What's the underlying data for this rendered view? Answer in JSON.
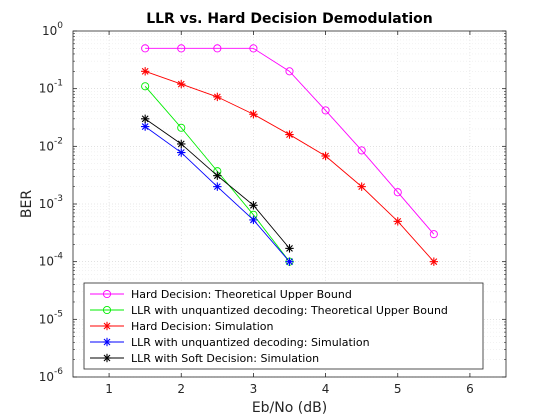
{
  "chart_data": {
    "type": "line",
    "title": "LLR vs. Hard Decision Demodulation",
    "xlabel": "Eb/No (dB)",
    "ylabel": "BER",
    "xlim": [
      0.5,
      6.5
    ],
    "ylim": [
      1e-06,
      1
    ],
    "yscale": "log",
    "grid": "major-and-minor",
    "legend_position": "bottom-left",
    "xticks": [
      1,
      2,
      3,
      4,
      5,
      6
    ],
    "yticks": [
      {
        "value": 1,
        "base": "10",
        "exp": "0"
      },
      {
        "value": 0.1,
        "base": "10",
        "exp": "-1"
      },
      {
        "value": 0.01,
        "base": "10",
        "exp": "-2"
      },
      {
        "value": 0.001,
        "base": "10",
        "exp": "-3"
      },
      {
        "value": 0.0001,
        "base": "10",
        "exp": "-4"
      },
      {
        "value": 1e-05,
        "base": "10",
        "exp": "-5"
      },
      {
        "value": 1e-06,
        "base": "10",
        "exp": "-6"
      }
    ],
    "series": [
      {
        "name": "Hard Decision: Theoretical Upper Bound",
        "color": "#ff00ff",
        "marker": "circle",
        "line": true,
        "x": [
          1.5,
          2,
          2.5,
          3,
          3.5,
          4,
          4.5,
          5,
          5.5
        ],
        "y": [
          0.5,
          0.5,
          0.5,
          0.5,
          0.2,
          0.042,
          0.0085,
          0.0016,
          0.0003
        ]
      },
      {
        "name": "LLR with unquantized decoding: Theoretical Upper Bound",
        "color": "#00ee00",
        "marker": "circle",
        "line": true,
        "x": [
          1.5,
          2,
          2.5,
          3,
          3.5
        ],
        "y": [
          0.11,
          0.021,
          0.0037,
          0.00065,
          0.0001
        ]
      },
      {
        "name": "Hard Decision: Simulation",
        "color": "#ff0000",
        "marker": "asterisk",
        "line": true,
        "x": [
          1.5,
          2,
          2.5,
          3,
          3.5,
          4,
          4.5,
          5,
          5.5
        ],
        "y": [
          0.2,
          0.12,
          0.072,
          0.036,
          0.016,
          0.0068,
          0.002,
          0.0005,
          0.0001
        ]
      },
      {
        "name": "LLR with unquantized decoding: Simulation",
        "color": "#0000ff",
        "marker": "asterisk",
        "line": true,
        "x": [
          1.5,
          2,
          2.5,
          3,
          3.5
        ],
        "y": [
          0.022,
          0.0078,
          0.002,
          0.00053,
          0.0001
        ]
      },
      {
        "name": "LLR with Soft Decision: Simulation",
        "color": "#000000",
        "marker": "asterisk",
        "line": true,
        "x": [
          1.5,
          2,
          2.5,
          3,
          3.5
        ],
        "y": [
          0.03,
          0.011,
          0.0031,
          0.00095,
          0.00017
        ]
      }
    ]
  }
}
